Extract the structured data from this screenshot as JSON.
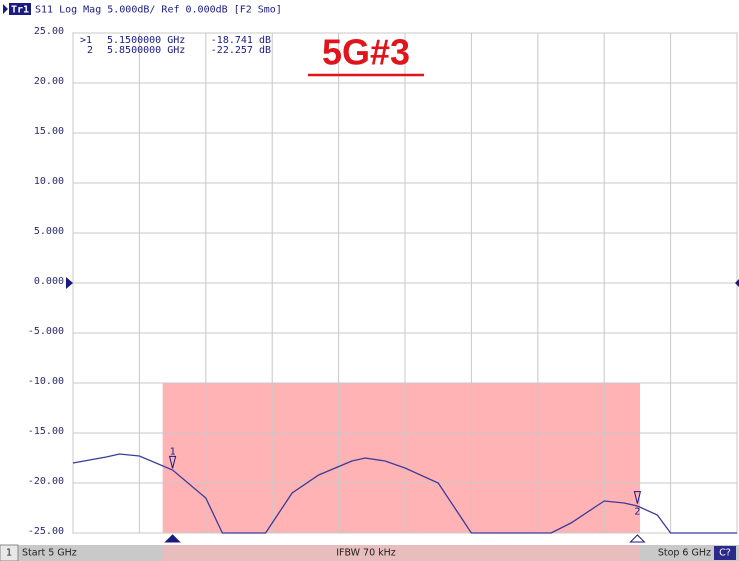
{
  "chart_data": {
    "type": "line",
    "channel": "Tr1",
    "header": "S11 Log Mag 5.000dB/ Ref 0.000dB [F2 Smo]",
    "title": "5G#3",
    "markers": [
      {
        "id": "1",
        "flag": ">1",
        "x": 5.15,
        "x_label": "5.1500000 GHz",
        "value": -18.741,
        "value_label": "-18.741 dB"
      },
      {
        "id": "2",
        "flag": "2",
        "x": 5.85,
        "x_label": "5.8500000 GHz",
        "value": -22.257,
        "value_label": "-22.257 dB"
      }
    ],
    "status": {
      "channel": "1",
      "start": "Start 5 GHz",
      "ifbw": "IFBW 70 kHz",
      "stop": "Stop 6 GHz",
      "cal": "C?"
    },
    "ref": 0,
    "mask": {
      "x": [
        5.135,
        5.854
      ],
      "y": [
        -25,
        -10
      ],
      "color": "#ffb3b5"
    },
    "x": [
      5.0,
      5.05,
      5.07,
      5.1,
      5.15,
      5.2,
      5.225,
      5.29,
      5.3,
      5.33,
      5.37,
      5.42,
      5.44,
      5.47,
      5.5,
      5.55,
      5.59,
      5.6,
      5.72,
      5.75,
      5.8,
      5.83,
      5.85,
      5.88,
      5.9,
      6.0
    ],
    "series": [
      {
        "name": "S11",
        "color": "#3b3b9a",
        "values": [
          -18,
          -17.4,
          -17.1,
          -17.3,
          -18.7,
          -21.5,
          -25,
          -25,
          -24,
          -21,
          -19.2,
          -17.8,
          -17.5,
          -17.8,
          -18.5,
          -20,
          -24,
          -25,
          -25,
          -24,
          -21.8,
          -22,
          -22.3,
          -23.2,
          -25,
          -25
        ]
      }
    ],
    "xlim": [
      5,
      6
    ],
    "xticks": [
      5,
      5.1,
      5.2,
      5.3,
      5.4,
      5.5,
      5.6,
      5.7,
      5.8,
      5.9,
      6
    ],
    "ylim": [
      -25,
      25
    ],
    "yticks": [
      {
        "value": 25,
        "label": "25.00"
      },
      {
        "value": 20,
        "label": "20.00"
      },
      {
        "value": 15,
        "label": "15.00"
      },
      {
        "value": 10,
        "label": "10.00"
      },
      {
        "value": 5,
        "label": "5.000"
      },
      {
        "value": 0,
        "label": "0.000"
      },
      {
        "value": -5,
        "label": "-5.000"
      },
      {
        "value": -10,
        "label": "-10.00"
      },
      {
        "value": -15,
        "label": "-15.00"
      },
      {
        "value": -20,
        "label": "-20.00"
      },
      {
        "value": -25,
        "label": "-25.00"
      }
    ],
    "grid": true
  }
}
